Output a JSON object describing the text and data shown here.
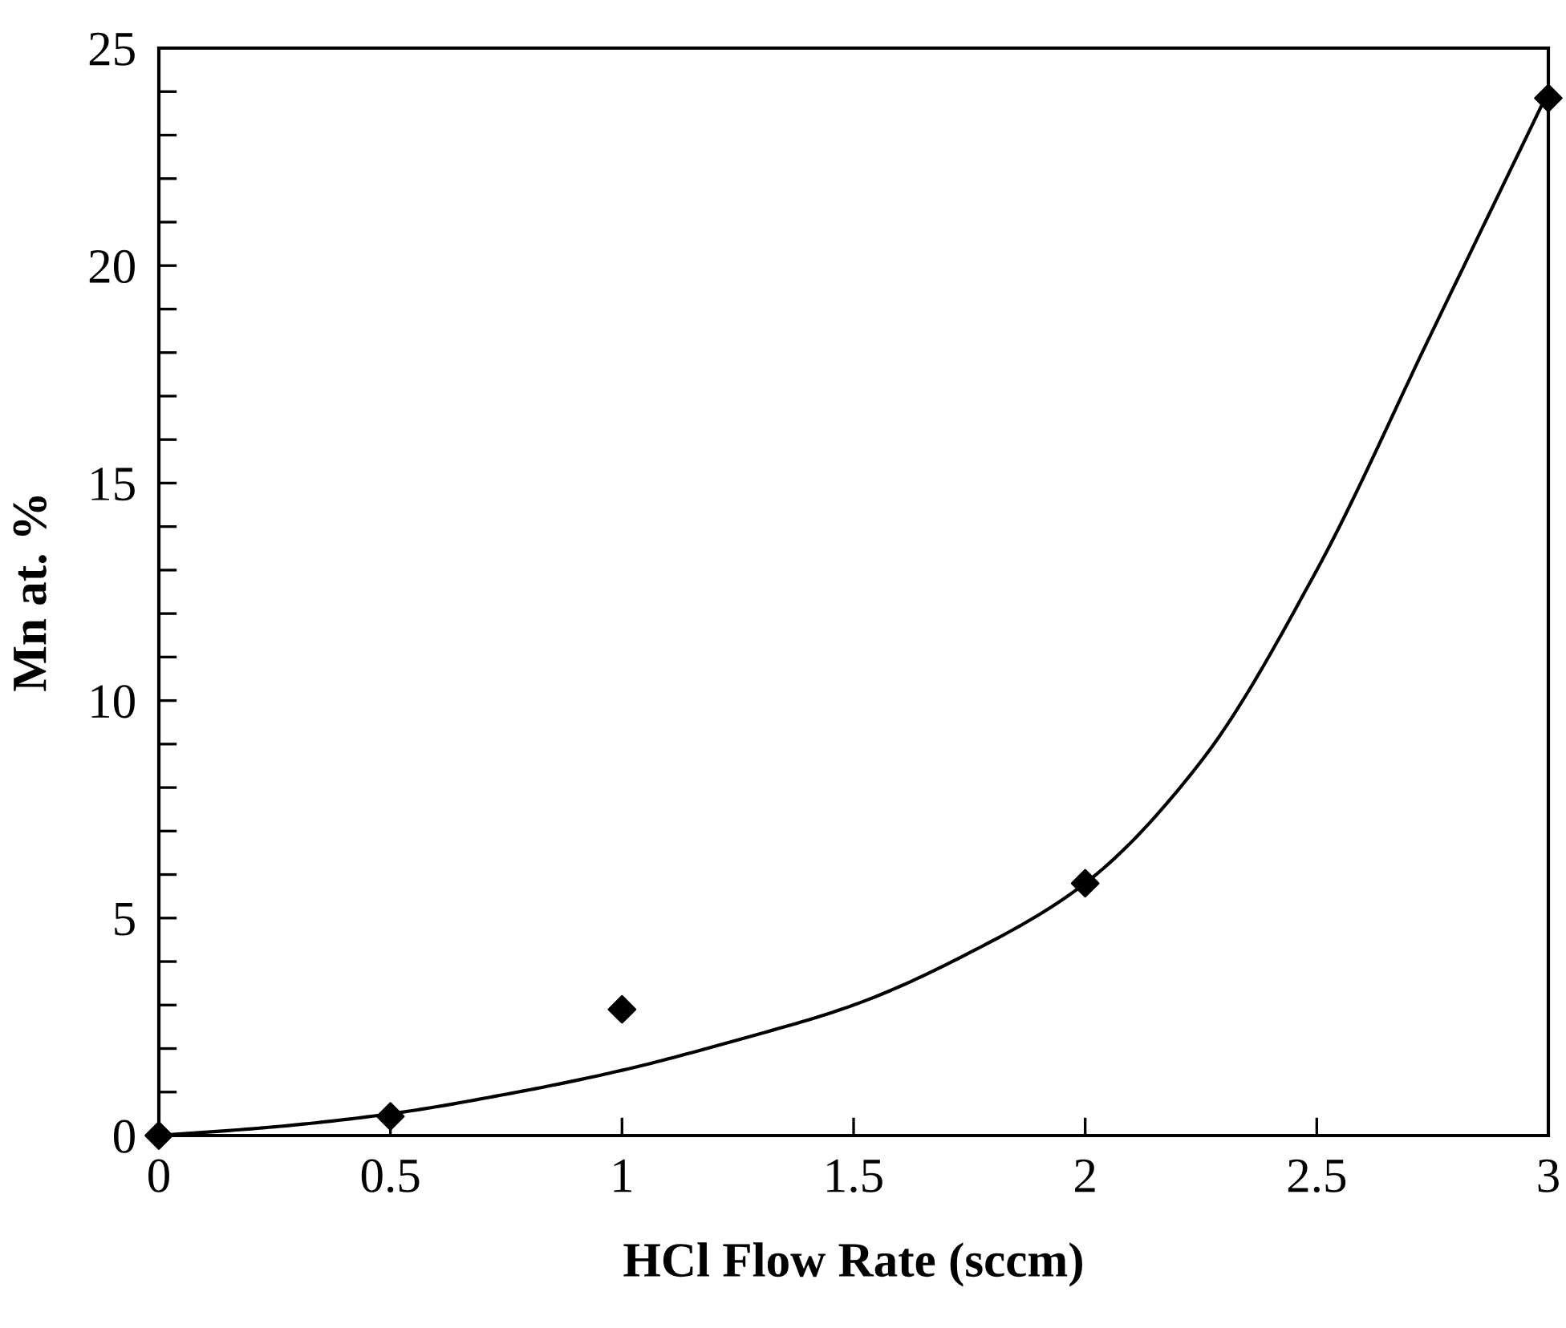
{
  "chart_data": {
    "type": "scatter",
    "xlabel": "HCl Flow Rate (sccm)",
    "ylabel": "Mn at. %",
    "xlim": [
      0,
      3
    ],
    "ylim": [
      0,
      25
    ],
    "xticks": [
      0,
      0.5,
      1,
      1.5,
      2,
      2.5,
      3
    ],
    "yticks": [
      0,
      {
        "value": 1,
        "label": null
      },
      {
        "value": 2,
        "label": null
      },
      {
        "value": 3,
        "label": null
      },
      {
        "value": 4,
        "label": null
      },
      5,
      {
        "value": 6,
        "label": null
      },
      {
        "value": 7,
        "label": null
      },
      {
        "value": 8,
        "label": null
      },
      {
        "value": 9,
        "label": null
      },
      10,
      {
        "value": 11,
        "label": null
      },
      {
        "value": 12,
        "label": null
      },
      {
        "value": 13,
        "label": null
      },
      {
        "value": 14,
        "label": null
      },
      15,
      {
        "value": 16,
        "label": null
      },
      {
        "value": 17,
        "label": null
      },
      {
        "value": 18,
        "label": null
      },
      {
        "value": 19,
        "label": null
      },
      20,
      {
        "value": 21,
        "label": null
      },
      {
        "value": 22,
        "label": null
      },
      {
        "value": 23,
        "label": null
      },
      {
        "value": 24,
        "label": null
      },
      25
    ],
    "grid": false,
    "legend": false,
    "series": [
      {
        "color": "#000000",
        "marker": "diamond",
        "x": [
          0,
          0.5,
          1,
          2,
          3
        ],
        "values": [
          0,
          0.44,
          2.9,
          5.8,
          23.85
        ]
      },
      {
        "type": "line",
        "color": "#000000",
        "marker": "none",
        "line_style": "solid",
        "x": [
          0,
          0.25,
          0.5,
          0.75,
          1,
          1.25,
          1.5,
          1.75,
          2,
          2.25,
          2.5,
          2.75,
          3
        ],
        "values": [
          0,
          0.2,
          0.5,
          0.95,
          1.5,
          2.2,
          3.0,
          4.2,
          5.8,
          8.6,
          13.0,
          18.5,
          24
        ]
      }
    ]
  }
}
